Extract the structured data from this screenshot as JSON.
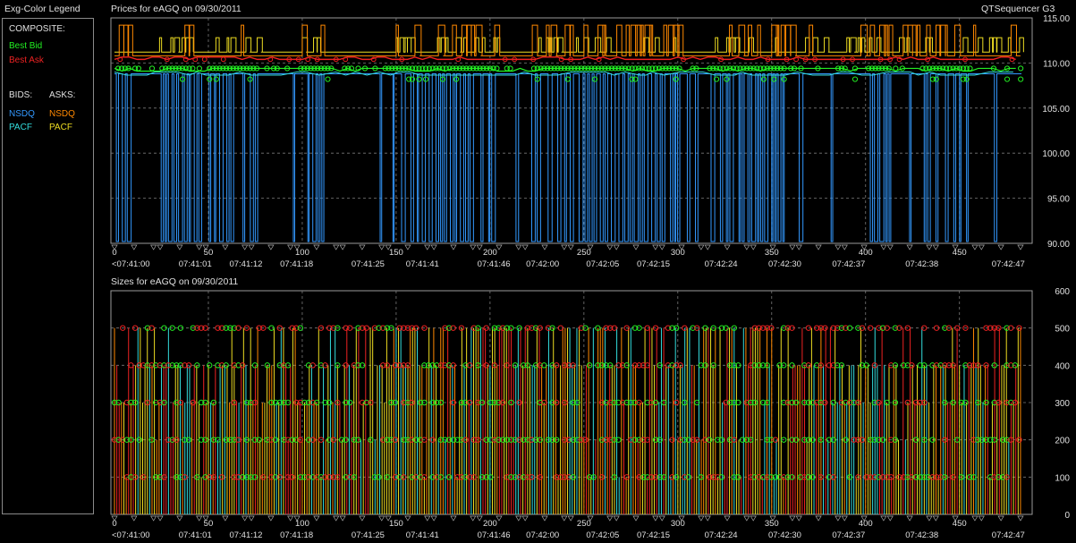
{
  "legend": {
    "header": "Exg-Color Legend",
    "composite_label": "COMPOSITE:",
    "best_bid": "Best Bid",
    "best_ask": "Best Ask",
    "bids_label": "BIDS:",
    "asks_label": "ASKS:",
    "bid_nsdq": "NSDQ",
    "ask_nsdq": "NSDQ",
    "bid_pacf": "PACF",
    "ask_pacf": "PACF"
  },
  "header": {
    "prices_title": "Prices for  eAGQ  on  09/30/2011",
    "app_name": "QTSequencer G3",
    "sizes_title": "Sizes for  eAGQ  on  09/30/2011"
  },
  "colors": {
    "best_bid": "#22ee22",
    "best_ask": "#ee2222",
    "bid_nsdq": "#3399ff",
    "ask_nsdq": "#ff8800",
    "bid_pacf": "#33dddd",
    "ask_pacf": "#eedd22"
  },
  "chart_data": [
    {
      "type": "line",
      "title": "Prices for  eAGQ  on  09/30/2011",
      "x_range": [
        0,
        483
      ],
      "x_ticks": [
        0,
        50,
        100,
        150,
        200,
        250,
        300,
        350,
        400,
        450
      ],
      "time_labels": [
        {
          "x": 0,
          "label": "<07:41:00"
        },
        {
          "x": 43,
          "label": "07:41:01"
        },
        {
          "x": 70,
          "label": "07:41:12"
        },
        {
          "x": 97,
          "label": "07:41:18"
        },
        {
          "x": 135,
          "label": "07:41:25"
        },
        {
          "x": 164,
          "label": "07:41:41"
        },
        {
          "x": 202,
          "label": "07:41:46"
        },
        {
          "x": 228,
          "label": "07:42:00"
        },
        {
          "x": 260,
          "label": "07:42:05"
        },
        {
          "x": 287,
          "label": "07:42:15"
        },
        {
          "x": 323,
          "label": "07:42:24"
        },
        {
          "x": 357,
          "label": "07:42:30"
        },
        {
          "x": 391,
          "label": "07:42:37"
        },
        {
          "x": 430,
          "label": "07:42:38"
        },
        {
          "x": 476,
          "label": "07:42:47"
        }
      ],
      "ylim": [
        90,
        115
      ],
      "y_ticks": [
        90,
        95,
        100,
        105,
        110,
        115
      ],
      "y_tick_labels": [
        "90.00",
        "95.00",
        "100.00",
        "105.00",
        "110.00",
        "115.00"
      ],
      "series": [
        {
          "name": "Best Bid",
          "level": 109.4
        },
        {
          "name": "Best Ask",
          "level": 110.4
        },
        {
          "name": "NSDQ",
          "side": "bid",
          "level": 108.8,
          "drop_to": 90.2
        },
        {
          "name": "NSDQ",
          "side": "ask",
          "level": 110.8,
          "spike_to": 114.2
        },
        {
          "name": "PACF",
          "side": "bid",
          "level": 109.0
        },
        {
          "name": "PACF",
          "side": "ask",
          "level": 111.2,
          "spike_to": 112.8
        }
      ]
    },
    {
      "type": "line",
      "title": "Sizes for  eAGQ  on  09/30/2011",
      "x_range": [
        0,
        483
      ],
      "x_ticks": [
        0,
        50,
        100,
        150,
        200,
        250,
        300,
        350,
        400,
        450
      ],
      "ylim": [
        0,
        600
      ],
      "y_ticks": [
        0,
        100,
        200,
        300,
        400,
        500,
        600
      ],
      "y_tick_labels": [
        "0",
        "100",
        "200",
        "300",
        "400",
        "500",
        "600"
      ],
      "size_levels": [
        100,
        200,
        300,
        400,
        500
      ]
    }
  ]
}
